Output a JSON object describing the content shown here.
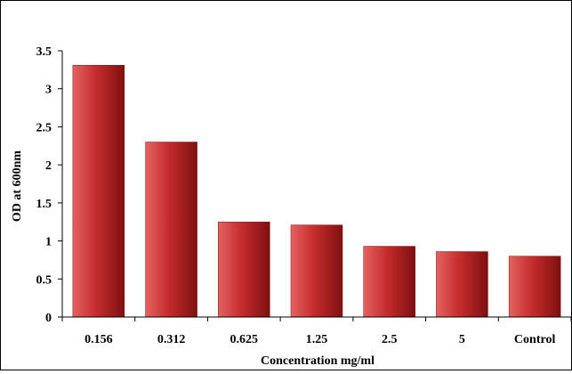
{
  "chart_data": {
    "type": "bar",
    "categories": [
      "0.156",
      "0.312",
      "0.625",
      "1.25",
      "2.5",
      "5",
      "Control"
    ],
    "values": [
      3.31,
      2.3,
      1.25,
      1.21,
      0.93,
      0.86,
      0.8
    ],
    "xlabel": "Concentration mg/ml",
    "ylabel": "OD at 600nm",
    "ylim": [
      0,
      3.5
    ],
    "yticks": [
      "0",
      "0.5",
      "1",
      "1.5",
      "2",
      "2.5",
      "3",
      "3.5"
    ],
    "grid": false,
    "legend": "none",
    "colors": {
      "bar_light": "#e46262",
      "bar_mid": "#c62c2c",
      "bar_dark": "#7e1010",
      "axis": "#000000"
    }
  }
}
